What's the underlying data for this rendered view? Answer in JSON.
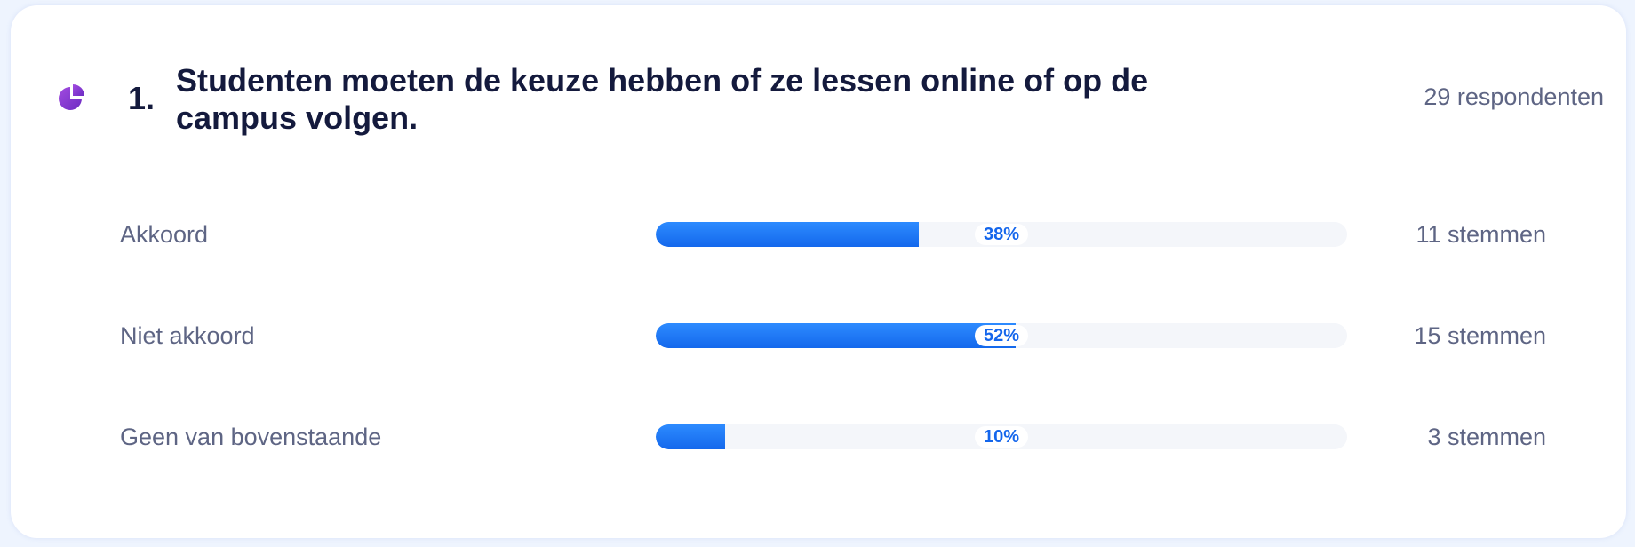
{
  "question": {
    "number": "1.",
    "text": "Studenten moeten de keuze hebben of ze lessen online of op de campus volgen.",
    "respondents": "29 respondenten",
    "icon": "pie-chart-icon"
  },
  "colors": {
    "bar_fill": "#1a74f5",
    "track": "#f4f6fa",
    "percent_text": "#1466ec",
    "icon": "#8a3fd1"
  },
  "chart_data": {
    "type": "bar",
    "categories": [
      "Akkoord",
      "Niet akkoord",
      "Geen van bovenstaande"
    ],
    "values": [
      38,
      52,
      10
    ],
    "value_labels": [
      "38%",
      "52%",
      "10%"
    ],
    "votes": [
      "11 stemmen",
      "15 stemmen",
      "3 stemmen"
    ],
    "ylim": [
      0,
      100
    ]
  }
}
